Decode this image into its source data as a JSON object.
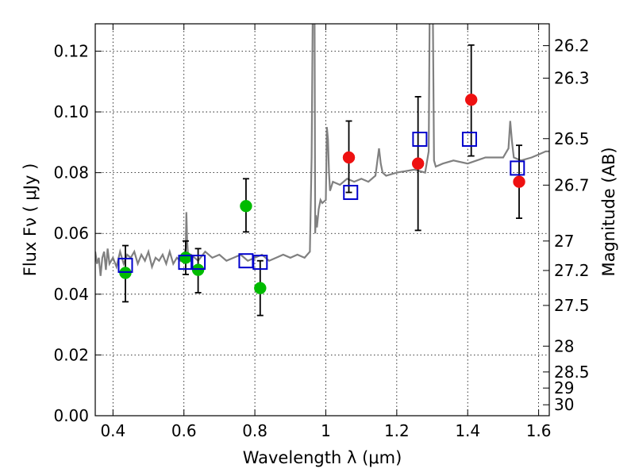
{
  "chart_data": {
    "type": "scatter",
    "xlabel": "Wavelength  λ (μm)",
    "ylabel": "Flux  Fν  ( μJy )",
    "ylabel_right": "Magnitude (AB)",
    "xlim": [
      0.35,
      1.63
    ],
    "ylim": [
      0.0,
      0.129
    ],
    "x_ticks": [
      0.4,
      0.6,
      0.8,
      1.0,
      1.2,
      1.4,
      1.6
    ],
    "x_tick_labels": [
      "0.4",
      "0.6",
      "0.8",
      "1",
      "1.2",
      "1.4",
      "1.6"
    ],
    "y_ticks": [
      0.0,
      0.02,
      0.04,
      0.06,
      0.08,
      0.1,
      0.12
    ],
    "y_tick_labels": [
      "0.00",
      "0.02",
      "0.04",
      "0.06",
      "0.08",
      "0.10",
      "0.12"
    ],
    "right_ticks": [
      {
        "label": "26.2",
        "flux": 0.1218
      },
      {
        "label": "26.3",
        "flux": 0.1111
      },
      {
        "label": "26.5",
        "flux": 0.0912
      },
      {
        "label": "26.7",
        "flux": 0.0759
      },
      {
        "label": "27",
        "flux": 0.0575
      },
      {
        "label": "27.2",
        "flux": 0.0478
      },
      {
        "label": "27.5",
        "flux": 0.0363
      },
      {
        "label": "28",
        "flux": 0.0229
      },
      {
        "label": "28.5",
        "flux": 0.0144
      },
      {
        "label": "29",
        "flux": 0.0091
      },
      {
        "label": "30",
        "flux": 0.0036
      }
    ],
    "grid": true,
    "colors": {
      "model": "#808080",
      "green": "#00bb00",
      "red": "#ee1111",
      "square": "#0000cc",
      "error": "#000000"
    },
    "model_spectrum": {
      "x": [
        0.35,
        0.355,
        0.36,
        0.365,
        0.37,
        0.375,
        0.38,
        0.385,
        0.39,
        0.4,
        0.41,
        0.42,
        0.43,
        0.44,
        0.45,
        0.46,
        0.47,
        0.48,
        0.49,
        0.5,
        0.51,
        0.52,
        0.53,
        0.54,
        0.55,
        0.56,
        0.57,
        0.58,
        0.59,
        0.6,
        0.605,
        0.607,
        0.609,
        0.612,
        0.62,
        0.64,
        0.66,
        0.68,
        0.7,
        0.72,
        0.74,
        0.76,
        0.78,
        0.8,
        0.82,
        0.84,
        0.86,
        0.88,
        0.9,
        0.92,
        0.94,
        0.955,
        0.96,
        0.965,
        0.968,
        0.97,
        0.972,
        0.975,
        0.98,
        0.985,
        0.99,
        1.0,
        1.003,
        1.006,
        1.009,
        1.012,
        1.02,
        1.04,
        1.06,
        1.08,
        1.1,
        1.12,
        1.14,
        1.15,
        1.155,
        1.16,
        1.17,
        1.2,
        1.25,
        1.28,
        1.29,
        1.295,
        1.3,
        1.305,
        1.31,
        1.33,
        1.36,
        1.4,
        1.45,
        1.5,
        1.515,
        1.52,
        1.525,
        1.53,
        1.55,
        1.58,
        1.6,
        1.62,
        1.63
      ],
      "y": [
        0.054,
        0.05,
        0.052,
        0.046,
        0.052,
        0.054,
        0.048,
        0.055,
        0.05,
        0.052,
        0.049,
        0.054,
        0.05,
        0.053,
        0.052,
        0.054,
        0.05,
        0.053,
        0.051,
        0.054,
        0.049,
        0.052,
        0.051,
        0.053,
        0.05,
        0.054,
        0.05,
        0.052,
        0.051,
        0.053,
        0.055,
        0.067,
        0.058,
        0.052,
        0.053,
        0.051,
        0.054,
        0.052,
        0.053,
        0.051,
        0.052,
        0.053,
        0.051,
        0.052,
        0.053,
        0.051,
        0.052,
        0.053,
        0.052,
        0.053,
        0.052,
        0.054,
        0.085,
        0.16,
        0.14,
        0.06,
        0.066,
        0.062,
        0.068,
        0.071,
        0.07,
        0.071,
        0.095,
        0.091,
        0.08,
        0.074,
        0.077,
        0.076,
        0.078,
        0.077,
        0.078,
        0.077,
        0.079,
        0.088,
        0.083,
        0.08,
        0.079,
        0.08,
        0.081,
        0.08,
        0.087,
        0.17,
        0.16,
        0.084,
        0.082,
        0.083,
        0.084,
        0.083,
        0.085,
        0.085,
        0.088,
        0.097,
        0.09,
        0.085,
        0.084,
        0.085,
        0.086,
        0.087,
        0.087
      ]
    },
    "series": [
      {
        "marker": "circle",
        "color": "green",
        "points": [
          {
            "x": 0.435,
            "y": 0.047,
            "err": [
              0.0375,
              0.056
            ]
          },
          {
            "x": 0.605,
            "y": 0.052,
            "err": [
              0.0465,
              0.0575
            ]
          },
          {
            "x": 0.64,
            "y": 0.048,
            "err": [
              0.0405,
              0.055
            ]
          },
          {
            "x": 0.775,
            "y": 0.069,
            "err": [
              0.0605,
              0.078
            ]
          },
          {
            "x": 0.815,
            "y": 0.042,
            "err": [
              0.033,
              0.051
            ]
          }
        ]
      },
      {
        "marker": "circle",
        "color": "red",
        "points": [
          {
            "x": 1.065,
            "y": 0.085,
            "err": [
              0.0735,
              0.097
            ]
          },
          {
            "x": 1.26,
            "y": 0.083,
            "err": [
              0.061,
              0.105
            ]
          },
          {
            "x": 1.41,
            "y": 0.104,
            "err": [
              0.0855,
              0.122
            ]
          },
          {
            "x": 1.545,
            "y": 0.077,
            "err": [
              0.065,
              0.089
            ]
          }
        ]
      },
      {
        "marker": "square",
        "color": "square",
        "points": [
          {
            "x": 0.435,
            "y": 0.0495
          },
          {
            "x": 0.605,
            "y": 0.0505
          },
          {
            "x": 0.64,
            "y": 0.0505
          },
          {
            "x": 0.775,
            "y": 0.051
          },
          {
            "x": 0.815,
            "y": 0.0505
          },
          {
            "x": 1.07,
            "y": 0.0735
          },
          {
            "x": 1.265,
            "y": 0.091
          },
          {
            "x": 1.405,
            "y": 0.091
          },
          {
            "x": 1.54,
            "y": 0.0815
          }
        ]
      }
    ]
  }
}
